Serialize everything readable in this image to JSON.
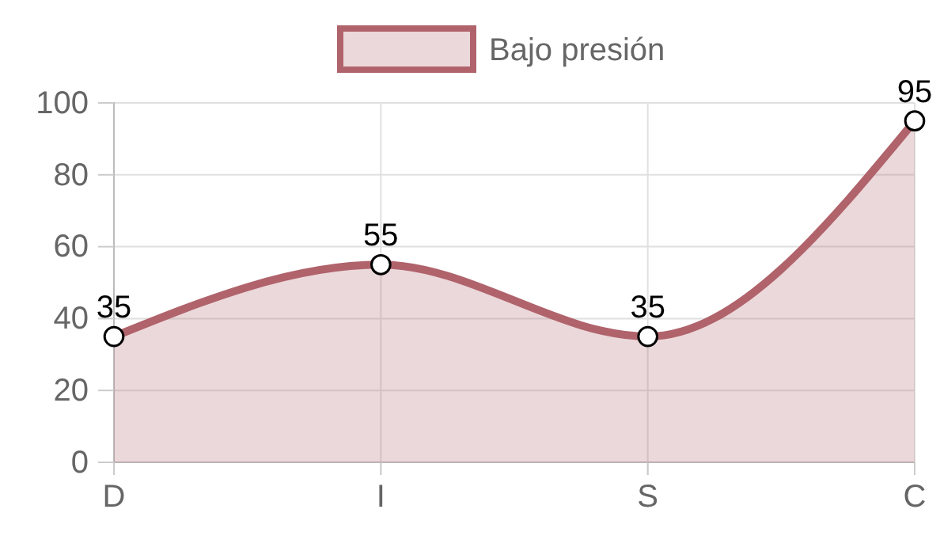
{
  "chart_data": {
    "type": "area",
    "categories": [
      "D",
      "I",
      "S",
      "C"
    ],
    "series": [
      {
        "name": "Bajo presión",
        "color": "#b0636b",
        "values": [
          35,
          55,
          35,
          95
        ]
      }
    ],
    "ylim": [
      0,
      100
    ],
    "yticks": [
      0,
      20,
      40,
      60,
      80,
      100
    ],
    "grid": true,
    "legend": "top",
    "marker": "circle",
    "data_labels": true
  }
}
